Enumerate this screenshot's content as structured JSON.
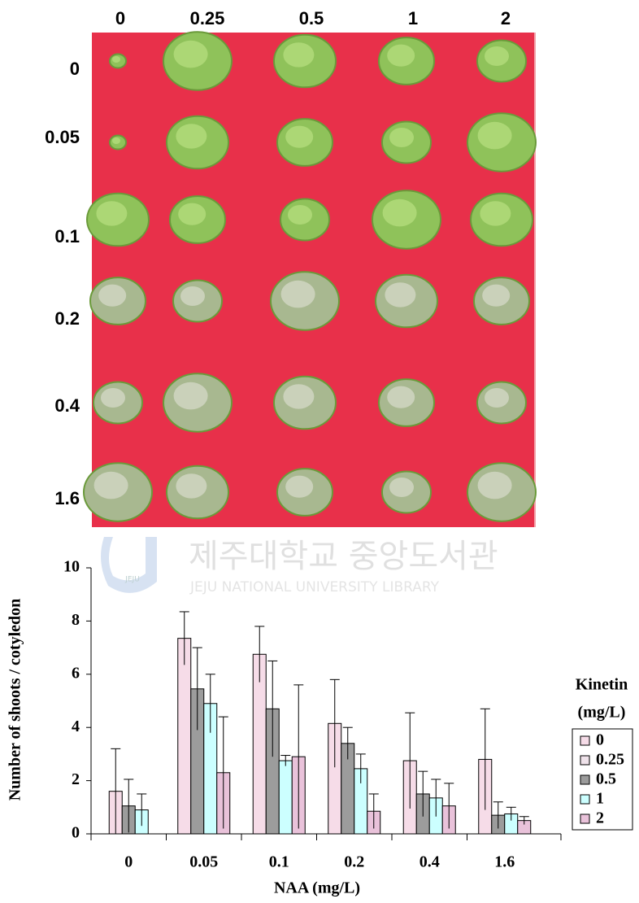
{
  "photo": {
    "column_labels": [
      "0",
      "0.25",
      "0.5",
      "1",
      "2"
    ],
    "row_labels": [
      "0",
      "0.05",
      "0.1",
      "0.2",
      "0.4",
      "1.6"
    ]
  },
  "watermark": {
    "title": "제주대학교 중앙도서관",
    "subtitle": "JEJU NATIONAL UNIVERSITY  LIBRARY",
    "logo": "JEJU"
  },
  "chart_data": {
    "type": "bar",
    "y_label": "Number of shoots / cotyledon",
    "x_label": "NAA (mg/L)",
    "legend_title": [
      "Kinetin",
      "(mg/L)"
    ],
    "categories": [
      "0",
      "0.05",
      "0.1",
      "0.2",
      "0.4",
      "1.6"
    ],
    "ylim": [
      0,
      10
    ],
    "yticks": [
      0,
      2,
      4,
      6,
      8,
      10
    ],
    "series": [
      {
        "name": "0",
        "color": "#f6dce8",
        "values": [
          1.6,
          7.35,
          6.75,
          4.15,
          2.75,
          2.8
        ],
        "errors": [
          1.6,
          1.0,
          1.05,
          1.65,
          1.8,
          1.9
        ]
      },
      {
        "name": "0.25",
        "color": "#efe2ea",
        "values": [
          null,
          null,
          null,
          null,
          null,
          null
        ],
        "errors": [
          null,
          null,
          null,
          null,
          null,
          null
        ]
      },
      {
        "name": "0.5",
        "color": "#9c9c9c",
        "values": [
          1.05,
          5.45,
          4.7,
          3.4,
          1.5,
          0.7
        ],
        "errors": [
          1.0,
          1.55,
          1.8,
          0.6,
          0.85,
          0.5
        ]
      },
      {
        "name": "1",
        "color": "#ccffff",
        "values": [
          0.9,
          4.9,
          2.75,
          2.45,
          1.35,
          0.75
        ],
        "errors": [
          0.6,
          1.1,
          0.2,
          0.55,
          0.7,
          0.25
        ]
      },
      {
        "name": "2",
        "color": "#e9c2da",
        "values": [
          null,
          2.3,
          2.9,
          0.85,
          1.05,
          0.5
        ],
        "errors": [
          null,
          2.1,
          2.7,
          0.65,
          0.85,
          0.15
        ]
      }
    ]
  }
}
